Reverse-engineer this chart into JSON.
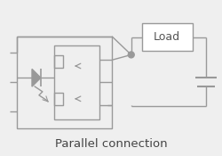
{
  "title": "Parallel connection",
  "bg_color": "#efefef",
  "line_color": "#999999",
  "text_color": "#444444",
  "lw": 1.0
}
